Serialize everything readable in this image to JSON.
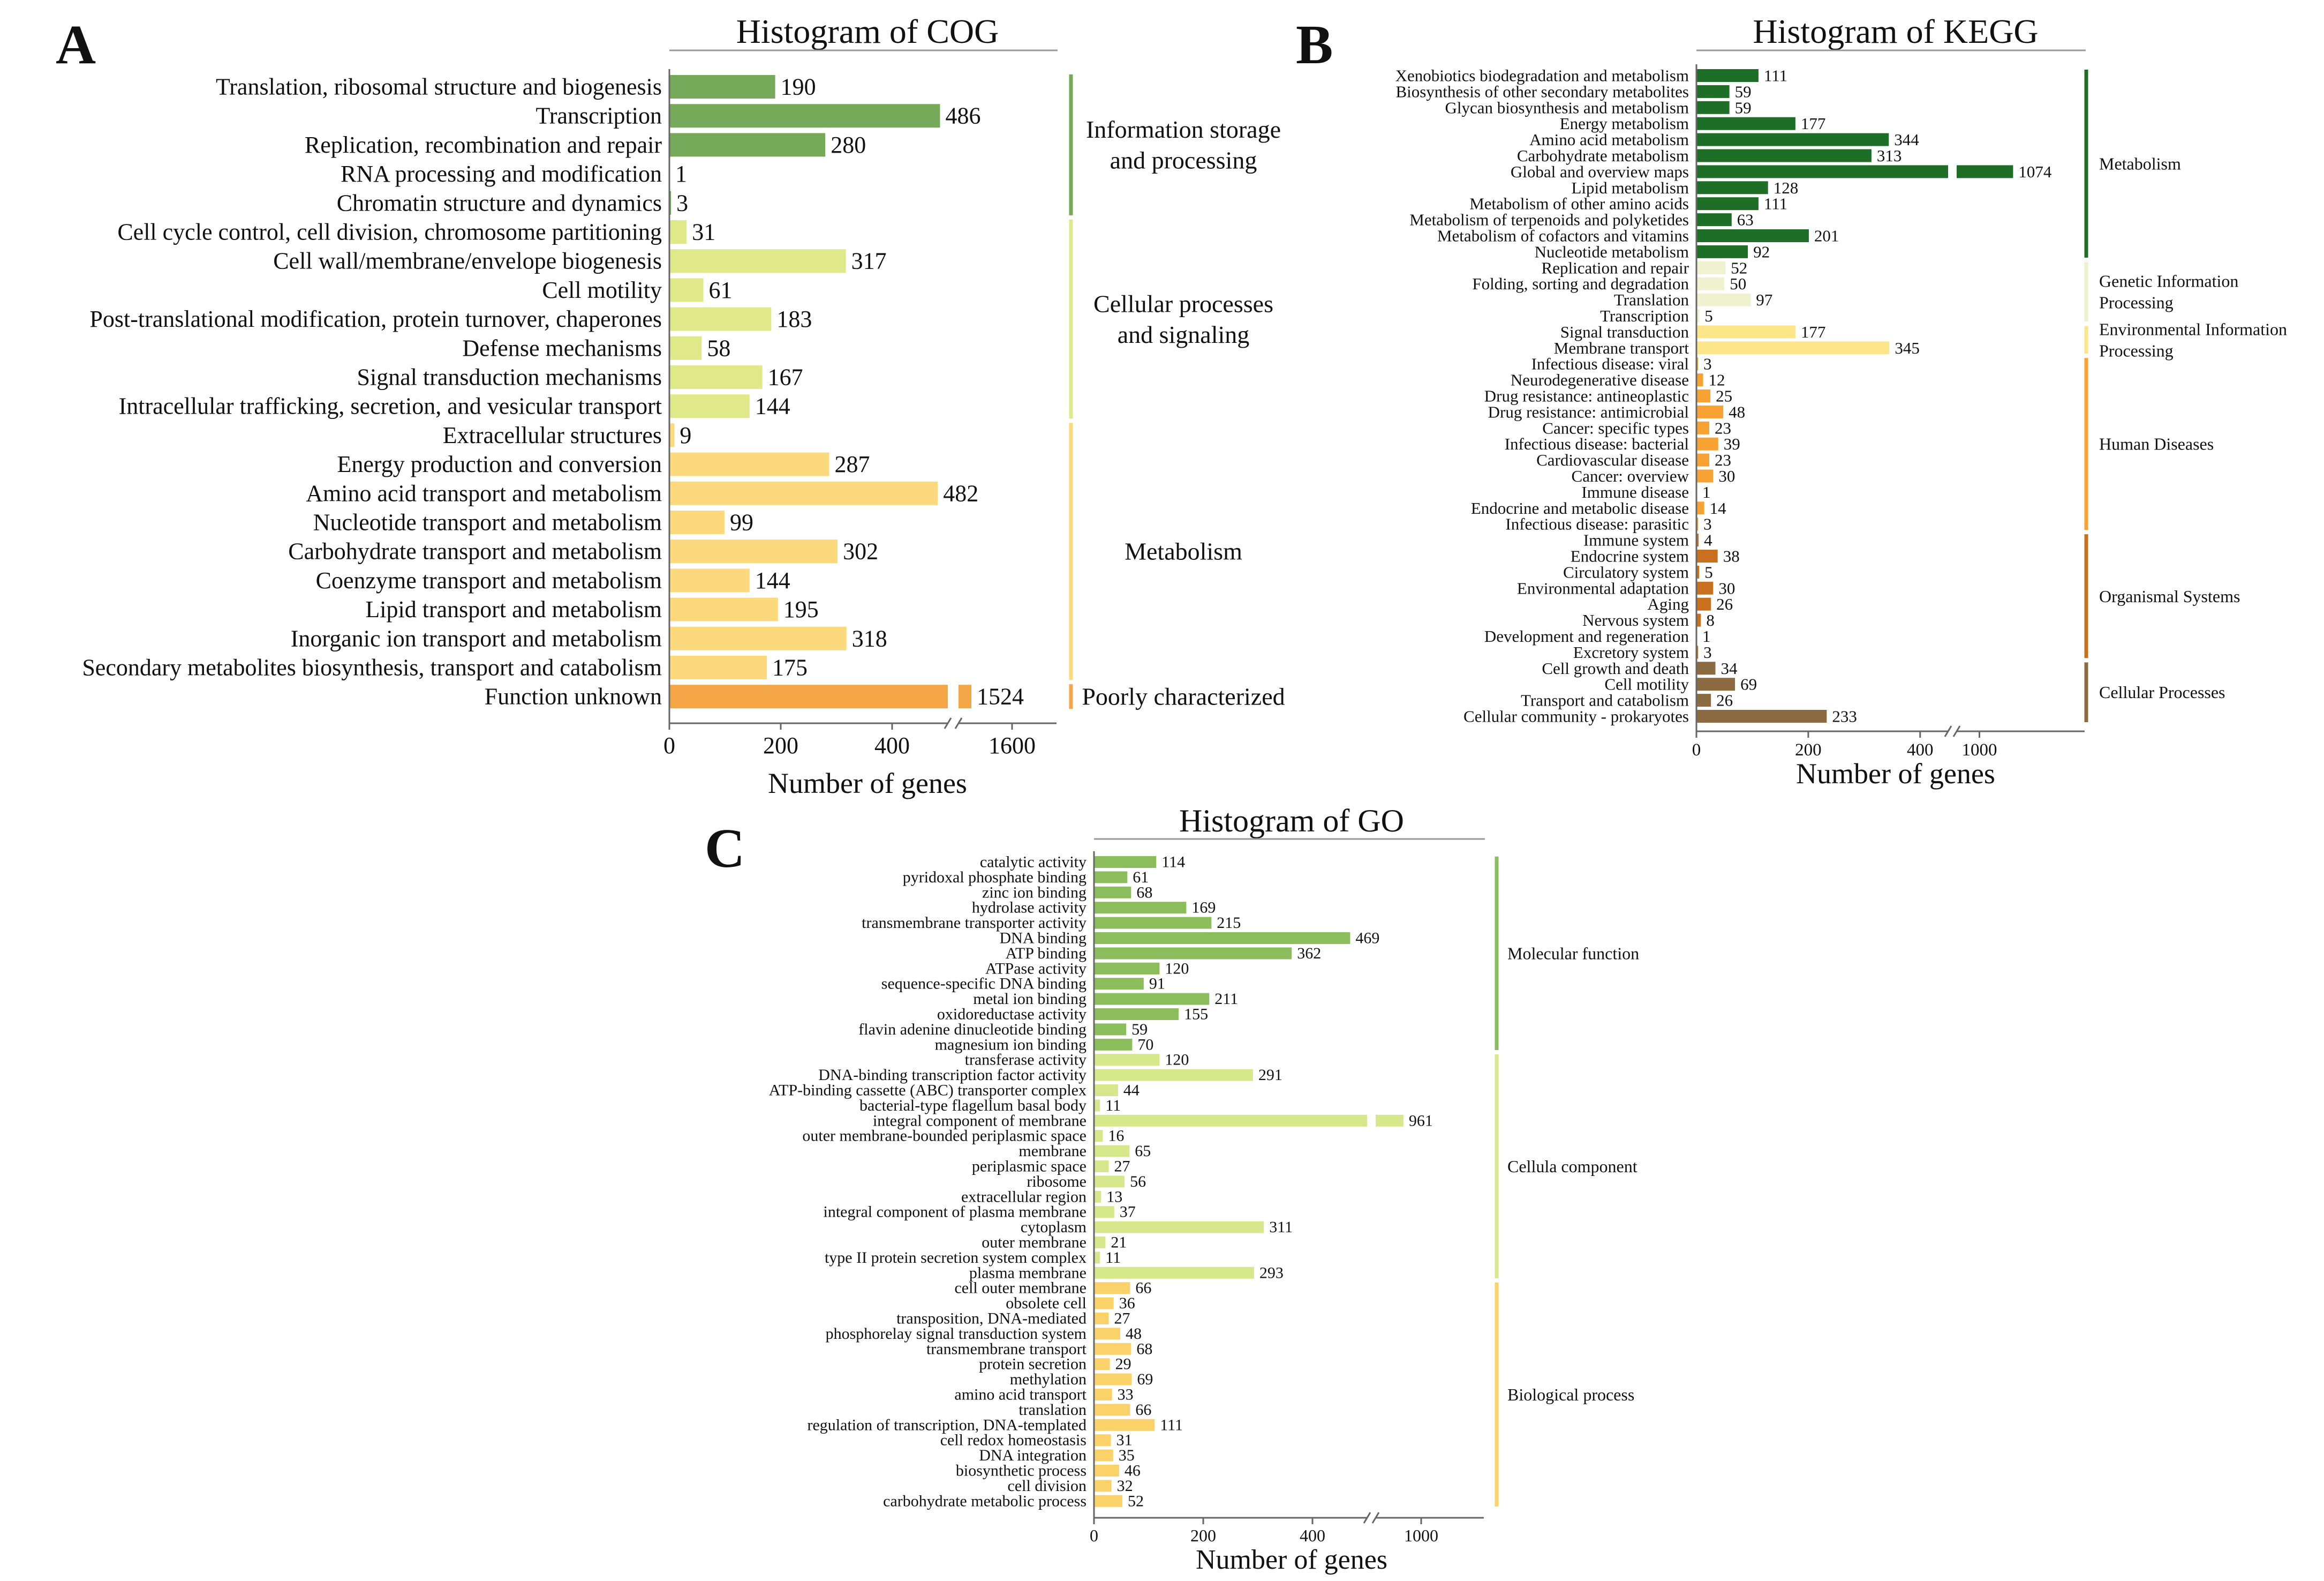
{
  "panels": {
    "a": {
      "letter": "A"
    },
    "b": {
      "letter": "B"
    },
    "c": {
      "letter": "C"
    }
  },
  "colors": {
    "info_storage": "#77a95a",
    "cellular_proc": "#dfe98a",
    "metabolism_cog": "#fbd97c",
    "poorly_char": "#f4a646",
    "kegg_metabolism": "#1f6e27",
    "kegg_genetic": "#f0f1cf",
    "kegg_env": "#fde68a",
    "kegg_human": "#f7a232",
    "kegg_organismal": "#c8701e",
    "kegg_cellular": "#8c6a42",
    "go_molecular": "#8bbd5d",
    "go_cellular": "#d6e78c",
    "go_biological": "#fbd26a"
  },
  "chart_data": [
    {
      "id": "cog",
      "type": "bar",
      "orientation": "horizontal",
      "title": "Histogram of COG",
      "xlabel": "Number of genes",
      "axis": {
        "break": [
          500,
          1500
        ],
        "ticks": [
          "0",
          "200",
          "400",
          "1600"
        ],
        "xlim": [
          0,
          1700
        ]
      },
      "groups": [
        {
          "label": "Information storage and processing",
          "lines": [
            "Information storage",
            "and processing"
          ],
          "color_key": "info_storage",
          "count": 5
        },
        {
          "label": "Cellular processes and signaling",
          "lines": [
            "Cellular processes",
            "and signaling"
          ],
          "color_key": "cellular_proc",
          "count": 7
        },
        {
          "label": "Metabolism",
          "lines": [
            "Metabolism"
          ],
          "color_key": "metabolism_cog",
          "count": 9
        },
        {
          "label": "Poorly characterized",
          "lines": [
            "Poorly characterized"
          ],
          "color_key": "poorly_char",
          "count": 1
        }
      ],
      "categories": [
        "Translation, ribosomal structure and biogenesis",
        "Transcription",
        "Replication, recombination and repair",
        "RNA processing and modification",
        "Chromatin structure and dynamics",
        "Cell cycle control, cell division, chromosome partitioning",
        "Cell wall/membrane/envelope biogenesis",
        "Cell motility",
        "Post-translational modification, protein turnover, chaperones",
        "Defense mechanisms",
        "Signal transduction mechanisms",
        "Intracellular trafficking, secretion, and vesicular transport",
        "Extracellular structures",
        "Energy production and conversion",
        "Amino acid transport and metabolism",
        "Nucleotide transport and metabolism",
        "Carbohydrate transport and metabolism",
        "Coenzyme transport and metabolism",
        "Lipid transport and metabolism",
        "Inorganic ion transport and metabolism",
        "Secondary metabolites biosynthesis, transport and catabolism",
        "Function unknown"
      ],
      "values": [
        190,
        486,
        280,
        1,
        3,
        31,
        317,
        61,
        183,
        58,
        167,
        144,
        9,
        287,
        482,
        99,
        302,
        144,
        195,
        318,
        175,
        1524
      ]
    },
    {
      "id": "kegg",
      "type": "bar",
      "orientation": "horizontal",
      "title": "Histogram of KEGG",
      "xlabel": "Number of genes",
      "axis": {
        "break": [
          450,
          950
        ],
        "ticks": [
          "0",
          "200",
          "400",
          "1000"
        ],
        "xlim": [
          0,
          1150
        ]
      },
      "groups": [
        {
          "label": "Metabolism",
          "lines": [
            "Metabolism"
          ],
          "color_key": "kegg_metabolism",
          "count": 12
        },
        {
          "label": "Genetic Information Processing",
          "lines": [
            "Genetic Information",
            "Processing"
          ],
          "color_key": "kegg_genetic",
          "count": 4
        },
        {
          "label": "Environmental Information Processing",
          "lines": [
            "Environmental Information",
            "Processing"
          ],
          "color_key": "kegg_env",
          "count": 2
        },
        {
          "label": "Human Diseases",
          "lines": [
            "Human Diseases"
          ],
          "color_key": "kegg_human",
          "count": 11
        },
        {
          "label": "Organismal Systems",
          "lines": [
            "Organismal Systems"
          ],
          "color_key": "kegg_organismal",
          "count": 8
        },
        {
          "label": "Cellular Processes",
          "lines": [
            "Cellular Processes"
          ],
          "color_key": "kegg_cellular",
          "count": 4
        }
      ],
      "categories": [
        "Xenobiotics biodegradation and metabolism",
        "Biosynthesis of other secondary metabolites",
        "Glycan biosynthesis and metabolism",
        "Energy metabolism",
        "Amino acid metabolism",
        "Carbohydrate metabolism",
        "Global and overview maps",
        "Lipid metabolism",
        "Metabolism of other amino acids",
        "Metabolism of terpenoids and polyketides",
        "Metabolism of cofactors and vitamins",
        "Nucleotide metabolism",
        "Replication and repair",
        "Folding, sorting and degradation",
        "Translation",
        "Transcription",
        "Signal transduction",
        "Membrane transport",
        "Infectious disease: viral",
        "Neurodegenerative disease",
        "Drug resistance: antineoplastic",
        "Drug resistance: antimicrobial",
        "Cancer: specific types",
        "Infectious disease: bacterial",
        "Cardiovascular disease",
        "Cancer: overview",
        "Immune disease",
        "Endocrine and metabolic disease",
        "Infectious disease: parasitic",
        "Immune system",
        "Endocrine system",
        "Circulatory system",
        "Environmental adaptation",
        "Aging",
        "Nervous system",
        "Development and regeneration",
        "Excretory system",
        "Cell growth and death",
        "Cell motility",
        "Transport and catabolism",
        "Cellular community - prokaryotes"
      ],
      "values": [
        111,
        59,
        59,
        177,
        344,
        313,
        1074,
        128,
        111,
        63,
        201,
        92,
        52,
        50,
        97,
        5,
        177,
        345,
        3,
        12,
        25,
        48,
        23,
        39,
        23,
        30,
        1,
        14,
        3,
        4,
        38,
        5,
        30,
        26,
        8,
        1,
        3,
        34,
        69,
        26,
        233
      ]
    },
    {
      "id": "go",
      "type": "bar",
      "orientation": "horizontal",
      "title": "Histogram of GO",
      "xlabel": "Number of genes",
      "axis": {
        "break": [
          500,
          900
        ],
        "ticks": [
          "0",
          "200",
          "400",
          "1000"
        ],
        "xlim": [
          0,
          1100
        ]
      },
      "groups": [
        {
          "label": "Molecular function",
          "lines": [
            "Molecular function"
          ],
          "color_key": "go_molecular",
          "count": 13
        },
        {
          "label": "Cellula component",
          "lines": [
            "Cellula component"
          ],
          "color_key": "go_cellular",
          "count": 15
        },
        {
          "label": "Biological process",
          "lines": [
            "Biological process"
          ],
          "color_key": "go_biological",
          "count": 15
        }
      ],
      "categories": [
        "catalytic activity",
        "pyridoxal phosphate binding",
        "zinc ion binding",
        "hydrolase activity",
        "transmembrane transporter activity",
        "DNA binding",
        "ATP binding",
        "ATPase activity",
        "sequence-specific DNA binding",
        "metal ion binding",
        "oxidoreductase activity",
        "flavin adenine dinucleotide binding",
        "magnesium ion binding",
        "transferase activity",
        "DNA-binding transcription factor activity",
        "ATP-binding cassette (ABC) transporter complex",
        "bacterial-type flagellum basal body",
        "integral component of membrane",
        "outer membrane-bounded periplasmic space",
        "membrane",
        "periplasmic space",
        "ribosome",
        "extracellular region",
        "integral component of plasma membrane",
        "cytoplasm",
        "outer membrane",
        "type II protein secretion system complex",
        "plasma membrane",
        "cell outer membrane",
        "obsolete cell",
        "transposition, DNA-mediated",
        "phosphorelay signal transduction system",
        "transmembrane transport",
        "protein secretion",
        "methylation",
        "amino acid transport",
        "translation",
        "regulation of transcription, DNA-templated",
        "cell redox homeostasis",
        "DNA integration",
        "biosynthetic process",
        "cell division",
        "carbohydrate metabolic process"
      ],
      "values": [
        114,
        61,
        68,
        169,
        215,
        469,
        362,
        120,
        91,
        211,
        155,
        59,
        70,
        120,
        291,
        44,
        11,
        961,
        16,
        65,
        27,
        56,
        13,
        37,
        311,
        21,
        11,
        293,
        66,
        36,
        27,
        48,
        68,
        29,
        69,
        33,
        66,
        111,
        31,
        35,
        46,
        32,
        52
      ]
    }
  ]
}
